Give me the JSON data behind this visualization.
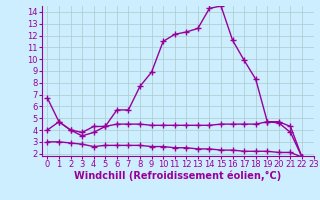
{
  "line1_x": [
    0,
    1,
    2,
    3,
    4,
    5,
    6,
    7,
    8,
    9,
    10,
    11,
    12,
    13,
    14,
    15,
    16,
    17,
    18,
    19,
    20,
    21,
    22,
    23
  ],
  "line1_y": [
    6.7,
    4.7,
    4.0,
    3.8,
    4.3,
    4.3,
    5.7,
    5.7,
    7.7,
    8.9,
    11.5,
    12.1,
    12.3,
    12.6,
    14.3,
    14.5,
    11.6,
    9.9,
    8.3,
    4.7,
    4.6,
    3.8,
    1.7,
    1.5
  ],
  "line2_x": [
    0,
    1,
    2,
    3,
    4,
    5,
    6,
    7,
    8,
    9,
    10,
    11,
    12,
    13,
    14,
    15,
    16,
    17,
    18,
    19,
    20,
    21,
    22,
    23
  ],
  "line2_y": [
    4.0,
    4.7,
    4.0,
    3.5,
    3.8,
    4.3,
    4.5,
    4.5,
    4.5,
    4.4,
    4.4,
    4.4,
    4.4,
    4.4,
    4.4,
    4.5,
    4.5,
    4.5,
    4.5,
    4.7,
    4.7,
    4.3,
    1.7,
    1.5
  ],
  "line3_x": [
    0,
    1,
    2,
    3,
    4,
    5,
    6,
    7,
    8,
    9,
    10,
    11,
    12,
    13,
    14,
    15,
    16,
    17,
    18,
    19,
    20,
    21,
    22,
    23
  ],
  "line3_y": [
    3.0,
    3.0,
    2.9,
    2.8,
    2.6,
    2.7,
    2.7,
    2.7,
    2.7,
    2.6,
    2.6,
    2.5,
    2.5,
    2.4,
    2.4,
    2.3,
    2.3,
    2.2,
    2.2,
    2.2,
    2.1,
    2.1,
    1.7,
    1.5
  ],
  "line_color": "#990099",
  "bg_color": "#cceeff",
  "grid_color": "#aacccc",
  "xlabel": "Windchill (Refroidissement éolien,°C)",
  "xlim": [
    -0.5,
    23
  ],
  "ylim": [
    1.8,
    14.5
  ],
  "yticks": [
    2,
    3,
    4,
    5,
    6,
    7,
    8,
    9,
    10,
    11,
    12,
    13,
    14
  ],
  "xticks": [
    0,
    1,
    2,
    3,
    4,
    5,
    6,
    7,
    8,
    9,
    10,
    11,
    12,
    13,
    14,
    15,
    16,
    17,
    18,
    19,
    20,
    21,
    22,
    23
  ],
  "marker": "+",
  "markersize": 4,
  "linewidth": 1.0,
  "xlabel_fontsize": 7,
  "tick_fontsize": 6
}
